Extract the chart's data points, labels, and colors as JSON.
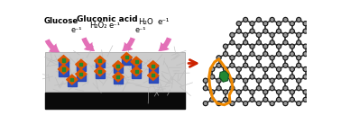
{
  "bg_color": "#ffffff",
  "labels": {
    "glucose": "Glucose",
    "gluconic": "Gluconic acid",
    "h2o2": "H₂O₂",
    "h2o": "H₂O",
    "eminus1": "e⁻¹",
    "eminus2": "e⁻¹",
    "eminus3": "e⁻¹",
    "eminus4": "e⁻¹"
  },
  "arrow_color": "#e060b0",
  "red_arrow_color": "#cc2200",
  "electrode_color": "#0a0a0a",
  "blue_box_color": "#2244bb",
  "orange_box_color": "#dd5500",
  "green_color": "#228833",
  "orange_outline_color": "#ee8800",
  "graphene_atom_outer": "#1a1a1a",
  "graphene_atom_inner": "#999999",
  "graphene_bond": "#333333"
}
